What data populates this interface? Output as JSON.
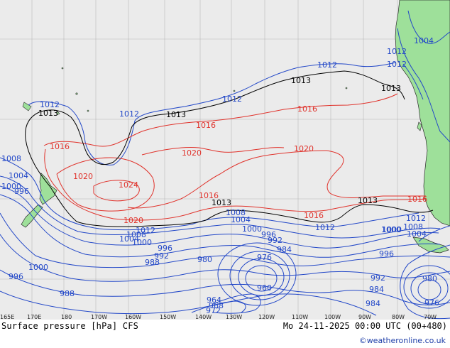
{
  "title": "Surface pressure [hPa] CFS",
  "valid_time": "Mo 24-11-2025 00:00 UTC (00+480)",
  "credit": "©weatheronline.co.uk",
  "colors": {
    "ocean": "#ebebeb",
    "land": "#9ee09a",
    "high_isobar": "#e0322b",
    "low_isobar": "#2348c8",
    "ref_isobar": "#000000",
    "grid": "#b8b8b8"
  },
  "longitude_ticks": [
    "165E",
    "170E",
    "180",
    "170W",
    "160W",
    "150W",
    "140W",
    "130W",
    "120W",
    "110W",
    "100W",
    "90W",
    "80W",
    "70W"
  ],
  "isobar_labels": {
    "red": [
      "1016",
      "1016",
      "1016",
      "1020",
      "1020",
      "1020",
      "1024",
      "1016",
      "1020",
      "1016",
      "1016"
    ],
    "black": [
      "1013",
      "1013",
      "1013",
      "1013",
      "1013",
      "1013"
    ],
    "blue": [
      "1012",
      "1012",
      "1012",
      "1012",
      "1012",
      "1012",
      "1004",
      "1012",
      "1008",
      "1004",
      "1000",
      "996",
      "1008",
      "1004",
      "1000",
      "996",
      "992",
      "984",
      "980",
      "976",
      "972",
      "964",
      "968",
      "960",
      "1000",
      "996",
      "992",
      "988",
      "984",
      "980",
      "976",
      "1012",
      "1008",
      "1004",
      "1000",
      "1000",
      "996",
      "988",
      "1012",
      "1008",
      "1004",
      "1000",
      "996",
      "992",
      "984"
    ]
  }
}
